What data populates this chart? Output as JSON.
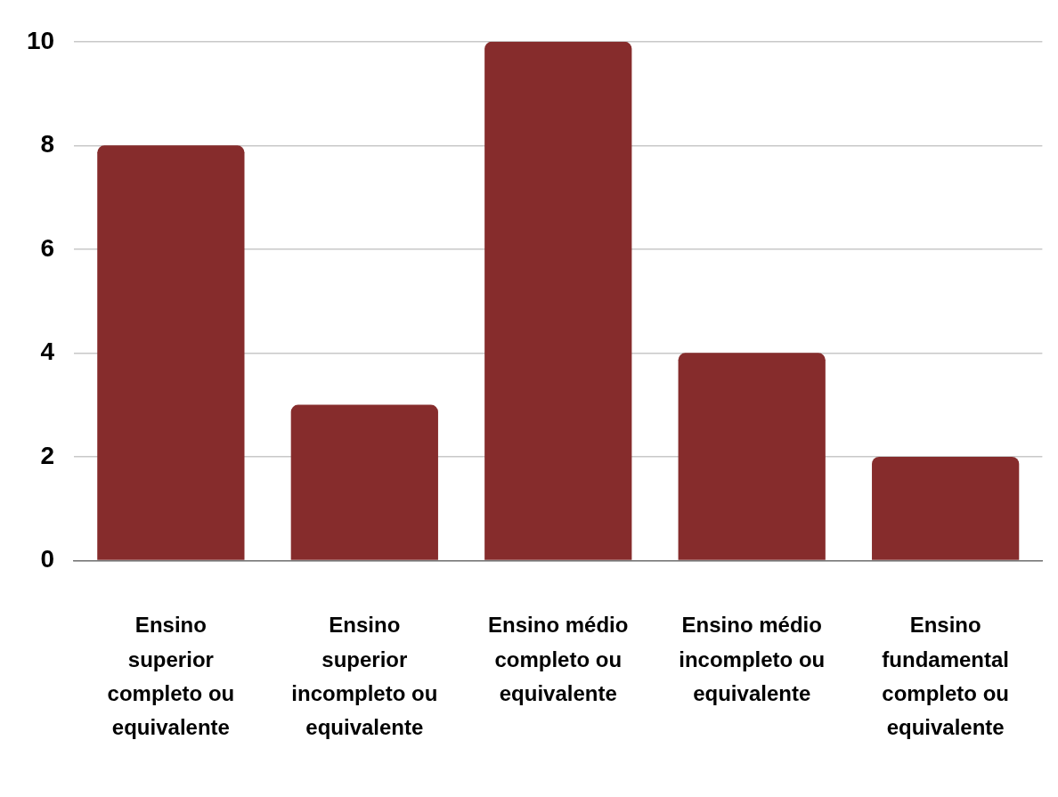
{
  "chart_data": {
    "type": "bar",
    "categories": [
      "Ensino superior completo ou equivalente",
      "Ensino superior incompleto ou equivalente",
      "Ensino médio completo ou equivalente",
      "Ensino médio incompleto ou equivalente",
      "Ensino fundamental completo ou equivalente"
    ],
    "values": [
      8,
      3,
      10,
      4,
      2
    ],
    "color": "#862c2c",
    "ylim": [
      0,
      10
    ],
    "yticks": [
      0,
      2,
      4,
      6,
      8,
      10
    ],
    "grid": "y",
    "legend": false
  }
}
